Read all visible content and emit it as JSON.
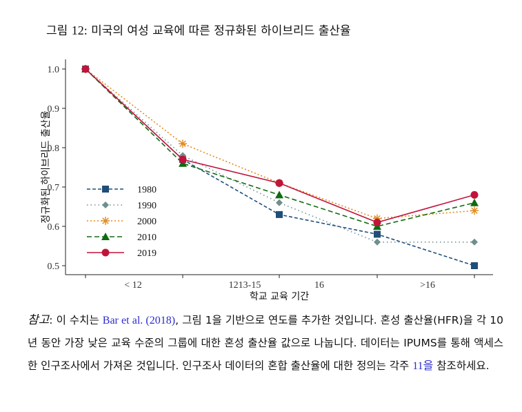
{
  "figure": {
    "title_prefix": "그림",
    "title_number": "12:",
    "title_text": "미국의 여성 교육에 따른 정규화된 하이브리드 출산율"
  },
  "chart_data": {
    "type": "line",
    "title": "그림 12: 미국의 여성 교육에 따른 정규화된 하이브리드 출산율",
    "xlabel": "학교 교육 기간",
    "ylabel": "정규화된 하이브리드 출산율",
    "categories": [
      "< 12",
      "",
      "1213-15",
      "16",
      ">16"
    ],
    "x_tick_labels": [
      "< 12",
      "1213-15",
      "16",
      ">16"
    ],
    "ylim": [
      0.5,
      1.0
    ],
    "yticks": [
      "0.5",
      "0.6",
      "0.7",
      "0.8",
      "0.9",
      "1.0"
    ],
    "grid": false,
    "legend_position": "bottom-left",
    "series": [
      {
        "name": "1980",
        "color": "#1f4e79",
        "dash": "5,3",
        "marker": "square",
        "values": [
          1.0,
          0.77,
          0.63,
          0.58,
          0.5
        ]
      },
      {
        "name": "1990",
        "color": "#6f8f8f",
        "dash": "1.5,4",
        "marker": "diamond",
        "values": [
          1.0,
          0.78,
          0.66,
          0.56,
          0.56
        ]
      },
      {
        "name": "2000",
        "color": "#e08a1e",
        "dash": "2,3",
        "marker": "asterisk",
        "values": [
          1.0,
          0.81,
          0.71,
          0.62,
          0.64
        ]
      },
      {
        "name": "2010",
        "color": "#0f6b0f",
        "dash": "7,4",
        "marker": "triangle",
        "values": [
          1.0,
          0.76,
          0.68,
          0.6,
          0.66
        ]
      },
      {
        "name": "2019",
        "color": "#c0143c",
        "dash": "",
        "marker": "circle",
        "values": [
          1.0,
          0.77,
          0.71,
          0.61,
          0.68
        ]
      }
    ]
  },
  "note": {
    "label": "참고",
    "seg1": ": 이 수치는 ",
    "cite": "Bar et al. (2018)",
    "seg2": ", 그림 1을 기반으로 연도를 추가한 것입니다. 혼성 출산율(HFR)을 각 10년 동안 가장 낮은 교육 수준의 그룹에 대한 혼성 출산율 값으로 나눕니다. 데이터는 IPUMS를 통해 액세스한 인구조사에서 가져온 것입니다. 인구조사 데이터의 혼합 출산율에 대한 정의는 각주 ",
    "footnote": "11을",
    "seg3": " 참조하세요."
  }
}
